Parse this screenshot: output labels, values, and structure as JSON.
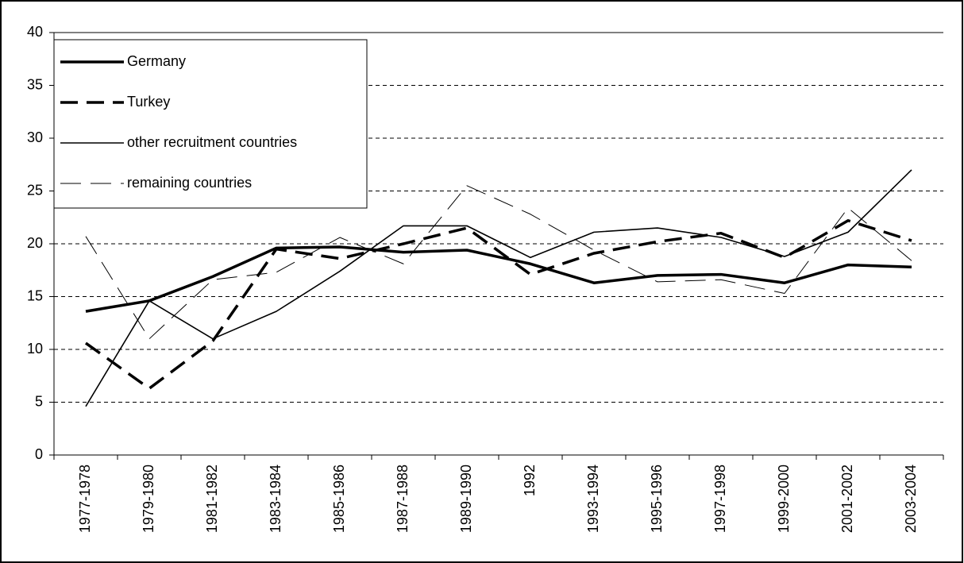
{
  "chart_data": {
    "type": "line",
    "categories": [
      "1977-1978",
      "1979-1980",
      "1981-1982",
      "1983-1984",
      "1985-1986",
      "1987-1988",
      "1989-1990",
      "1992",
      "1993-1994",
      "1995-1996",
      "1997-1998",
      "1999-2000",
      "2001-2002",
      "2003-2004"
    ],
    "series": [
      {
        "name": "Germany",
        "color": "#000000",
        "values": [
          13.6,
          14.6,
          16.9,
          19.6,
          19.7,
          19.2,
          19.4,
          18.1,
          16.3,
          17.0,
          17.1,
          16.3,
          18.0,
          17.8
        ]
      },
      {
        "name": "Turkey",
        "color": "#000000",
        "values": [
          10.6,
          6.3,
          10.8,
          19.5,
          18.6,
          20.0,
          21.5,
          17.1,
          19.1,
          20.2,
          21.0,
          18.7,
          22.2,
          20.3
        ]
      },
      {
        "name": "other recruitment countries",
        "color": "#000000",
        "values": [
          4.6,
          14.6,
          11.0,
          13.6,
          17.4,
          21.7,
          21.7,
          18.7,
          21.1,
          21.5,
          20.6,
          18.8,
          21.1,
          27.0
        ]
      },
      {
        "name": "remaining countries",
        "color": "#000000",
        "values": [
          20.7,
          11.0,
          16.6,
          17.3,
          20.6,
          18.1,
          25.5,
          22.8,
          19.4,
          16.4,
          16.6,
          15.3,
          23.4,
          18.4
        ]
      }
    ],
    "ylim": [
      0,
      40
    ],
    "yticks": [
      0,
      5,
      10,
      15,
      20,
      25,
      30,
      35,
      40
    ],
    "grid": true,
    "legend": "upper left"
  }
}
